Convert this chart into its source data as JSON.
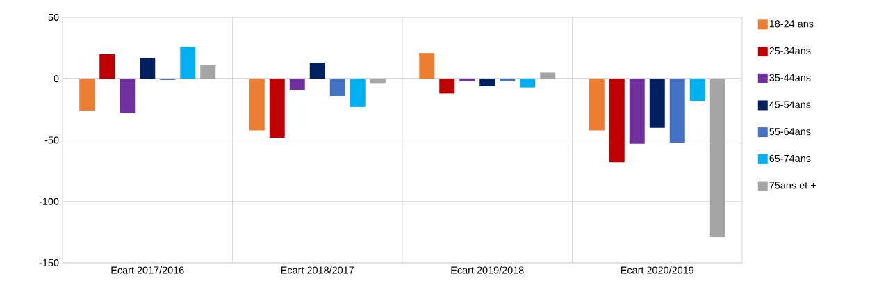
{
  "chart_data": {
    "type": "bar",
    "categories": [
      "Ecart 2017/2016",
      "Ecart 2018/2017",
      "Ecart 2019/2018",
      "Ecart 2020/2019"
    ],
    "series": [
      {
        "name": "18-24 ans",
        "color": "#ed7d31",
        "values": [
          -26,
          -42,
          21,
          -42
        ]
      },
      {
        "name": "25-34ans",
        "color": "#c00000",
        "values": [
          20,
          -48,
          -12,
          -68
        ]
      },
      {
        "name": "35-44ans",
        "color": "#7030a0",
        "values": [
          -28,
          -9,
          -2,
          -53
        ]
      },
      {
        "name": "45-54ans",
        "color": "#002060",
        "values": [
          17,
          13,
          -6,
          -40
        ]
      },
      {
        "name": "55-64ans",
        "color": "#4472c4",
        "values": [
          -1,
          -14,
          -2,
          -52
        ]
      },
      {
        "name": "65-74ans",
        "color": "#00b0f0",
        "values": [
          26,
          -23,
          -7,
          -18
        ]
      },
      {
        "name": "75ans et +",
        "color": "#a5a5a5",
        "values": [
          11,
          -4,
          5,
          -129
        ]
      }
    ],
    "ylim": [
      -150,
      50
    ],
    "yticks": [
      -150,
      -100,
      -50,
      0,
      50
    ],
    "grid": true,
    "legend": "right"
  }
}
